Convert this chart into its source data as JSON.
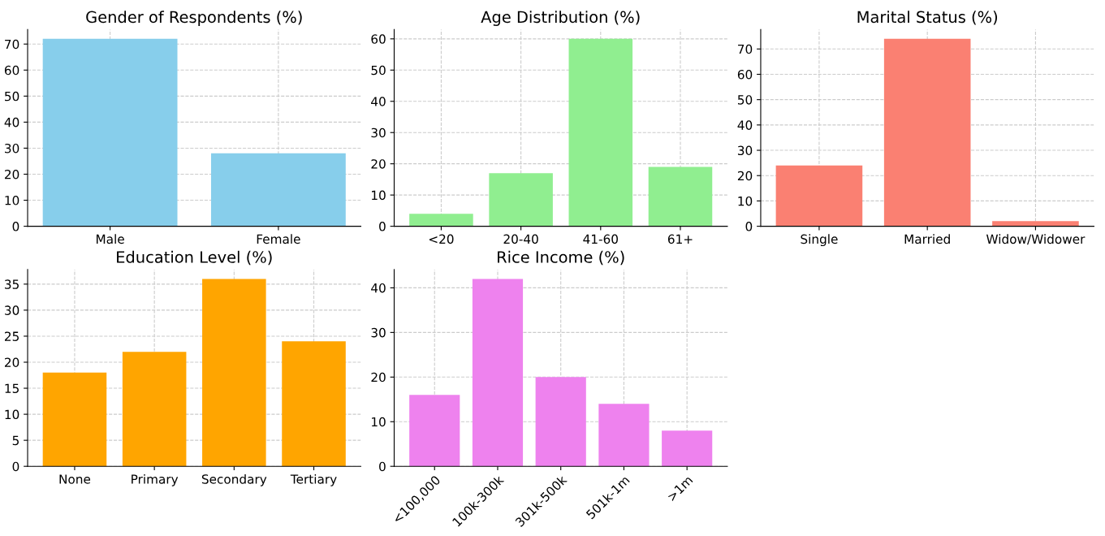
{
  "chart_data": [
    {
      "type": "bar",
      "title": "Gender of Respondents (%)",
      "categories": [
        "Male",
        "Female"
      ],
      "values": [
        72,
        28
      ],
      "color": "#87ceeb",
      "ylim": [
        0,
        75.6
      ],
      "yticks": [
        0,
        10,
        20,
        30,
        40,
        50,
        60,
        70
      ],
      "grid": true
    },
    {
      "type": "bar",
      "title": "Age Distribution (%)",
      "categories": [
        "<20",
        "20-40",
        "41-60",
        "61+"
      ],
      "values": [
        4,
        17,
        60,
        19
      ],
      "color": "#90ee90",
      "ylim": [
        0,
        63
      ],
      "yticks": [
        0,
        10,
        20,
        30,
        40,
        50,
        60
      ],
      "grid": true
    },
    {
      "type": "bar",
      "title": "Marital Status (%)",
      "categories": [
        "Single",
        "Married",
        "Widow/Widower"
      ],
      "values": [
        24,
        74,
        2
      ],
      "color": "#fa8072",
      "ylim": [
        0,
        77.7
      ],
      "yticks": [
        0,
        10,
        20,
        30,
        40,
        50,
        60,
        70
      ],
      "grid": true
    },
    {
      "type": "bar",
      "title": "Education Level (%)",
      "categories": [
        "None",
        "Primary",
        "Secondary",
        "Tertiary"
      ],
      "values": [
        18,
        22,
        36,
        24
      ],
      "color": "#ffa500",
      "ylim": [
        0,
        37.8
      ],
      "yticks": [
        0,
        5,
        10,
        15,
        20,
        25,
        30,
        35
      ],
      "grid": true
    },
    {
      "type": "bar",
      "title": "Rice Income (%)",
      "categories": [
        "<100,000",
        "100k-300k",
        "301k-500k",
        "501k-1m",
        ">1m"
      ],
      "values": [
        16,
        42,
        20,
        14,
        8
      ],
      "color": "#ee82ee",
      "ylim": [
        0,
        44.1
      ],
      "yticks": [
        0,
        10,
        20,
        30,
        40
      ],
      "grid": true
    }
  ]
}
